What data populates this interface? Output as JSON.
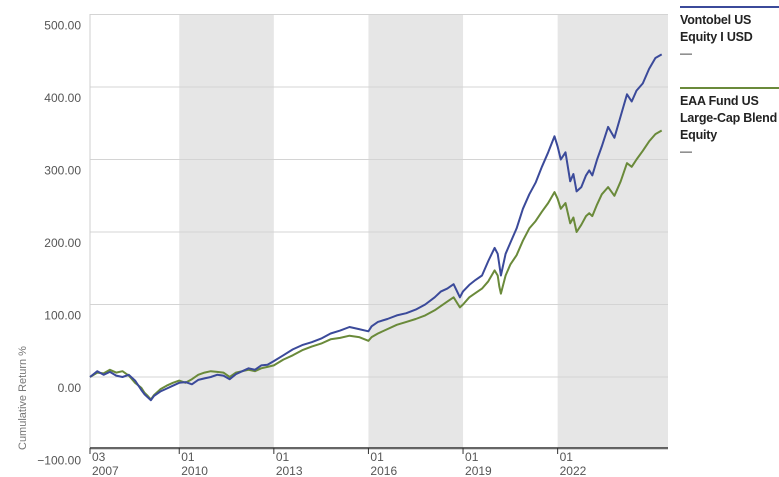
{
  "chart_data": {
    "type": "line",
    "title": "",
    "xlabel": "",
    "ylabel": "Cumulative Return %",
    "ylim": [
      -100,
      500
    ],
    "yticks": [
      "500.00",
      "400.00",
      "300.00",
      "200.00",
      "100.00",
      "0.00",
      "−100.00"
    ],
    "ytick_values": [
      500,
      400,
      300,
      200,
      100,
      0,
      -100
    ],
    "xticks": [
      {
        "month": "03",
        "year": "2007",
        "t": 2007.17
      },
      {
        "month": "01",
        "year": "2010",
        "t": 2010.0
      },
      {
        "month": "01",
        "year": "2013",
        "t": 2013.0
      },
      {
        "month": "01",
        "year": "2016",
        "t": 2016.0
      },
      {
        "month": "01",
        "year": "2019",
        "t": 2019.0
      },
      {
        "month": "01",
        "year": "2022",
        "t": 2022.0
      }
    ],
    "xlim": [
      2007.17,
      2025.5
    ],
    "shaded_periods": [
      [
        2010.0,
        2013.0
      ],
      [
        2016.0,
        2019.0
      ],
      [
        2022.0,
        2025.5
      ]
    ],
    "grid": true,
    "legend_position": "right",
    "series": [
      {
        "name": "Vontobel US Equity I USD",
        "value_label": "—",
        "color": "#3b4a9a",
        "points": [
          [
            2007.17,
            0
          ],
          [
            2007.4,
            8
          ],
          [
            2007.6,
            3
          ],
          [
            2007.8,
            7
          ],
          [
            2008.0,
            2
          ],
          [
            2008.2,
            0
          ],
          [
            2008.4,
            3
          ],
          [
            2008.6,
            -5
          ],
          [
            2008.8,
            -18
          ],
          [
            2008.9,
            -24
          ],
          [
            2009.0,
            -28
          ],
          [
            2009.1,
            -32
          ],
          [
            2009.2,
            -26
          ],
          [
            2009.4,
            -20
          ],
          [
            2009.6,
            -16
          ],
          [
            2009.8,
            -12
          ],
          [
            2010.0,
            -8
          ],
          [
            2010.2,
            -7
          ],
          [
            2010.4,
            -10
          ],
          [
            2010.6,
            -4
          ],
          [
            2010.8,
            -2
          ],
          [
            2011.0,
            0
          ],
          [
            2011.2,
            3
          ],
          [
            2011.4,
            2
          ],
          [
            2011.6,
            -3
          ],
          [
            2011.8,
            4
          ],
          [
            2012.0,
            8
          ],
          [
            2012.2,
            12
          ],
          [
            2012.4,
            10
          ],
          [
            2012.6,
            16
          ],
          [
            2012.8,
            17
          ],
          [
            2013.0,
            22
          ],
          [
            2013.3,
            30
          ],
          [
            2013.6,
            38
          ],
          [
            2013.9,
            44
          ],
          [
            2014.2,
            48
          ],
          [
            2014.5,
            53
          ],
          [
            2014.8,
            60
          ],
          [
            2015.1,
            64
          ],
          [
            2015.4,
            69
          ],
          [
            2015.7,
            66
          ],
          [
            2016.0,
            63
          ],
          [
            2016.1,
            70
          ],
          [
            2016.3,
            76
          ],
          [
            2016.6,
            80
          ],
          [
            2016.9,
            85
          ],
          [
            2017.2,
            88
          ],
          [
            2017.5,
            93
          ],
          [
            2017.8,
            100
          ],
          [
            2018.1,
            110
          ],
          [
            2018.3,
            118
          ],
          [
            2018.5,
            122
          ],
          [
            2018.7,
            128
          ],
          [
            2018.9,
            110
          ],
          [
            2019.0,
            118
          ],
          [
            2019.2,
            127
          ],
          [
            2019.4,
            134
          ],
          [
            2019.6,
            140
          ],
          [
            2019.8,
            160
          ],
          [
            2020.0,
            178
          ],
          [
            2020.1,
            170
          ],
          [
            2020.15,
            155
          ],
          [
            2020.2,
            140
          ],
          [
            2020.35,
            170
          ],
          [
            2020.5,
            185
          ],
          [
            2020.7,
            205
          ],
          [
            2020.9,
            232
          ],
          [
            2021.1,
            252
          ],
          [
            2021.3,
            268
          ],
          [
            2021.5,
            290
          ],
          [
            2021.7,
            310
          ],
          [
            2021.9,
            332
          ],
          [
            2022.0,
            318
          ],
          [
            2022.1,
            300
          ],
          [
            2022.25,
            310
          ],
          [
            2022.4,
            270
          ],
          [
            2022.5,
            280
          ],
          [
            2022.6,
            256
          ],
          [
            2022.75,
            262
          ],
          [
            2022.9,
            278
          ],
          [
            2023.0,
            285
          ],
          [
            2023.1,
            278
          ],
          [
            2023.25,
            300
          ],
          [
            2023.4,
            318
          ],
          [
            2023.6,
            345
          ],
          [
            2023.8,
            330
          ],
          [
            2024.0,
            360
          ],
          [
            2024.2,
            390
          ],
          [
            2024.35,
            380
          ],
          [
            2024.5,
            395
          ],
          [
            2024.7,
            405
          ],
          [
            2024.9,
            425
          ],
          [
            2025.1,
            440
          ],
          [
            2025.3,
            445
          ]
        ]
      },
      {
        "name": "EAA Fund US Large-Cap Blend Equity",
        "value_label": "—",
        "color": "#6a8a3a",
        "points": [
          [
            2007.17,
            0
          ],
          [
            2007.4,
            6
          ],
          [
            2007.6,
            5
          ],
          [
            2007.8,
            10
          ],
          [
            2008.0,
            6
          ],
          [
            2008.2,
            8
          ],
          [
            2008.4,
            2
          ],
          [
            2008.6,
            -8
          ],
          [
            2008.8,
            -15
          ],
          [
            2008.9,
            -22
          ],
          [
            2009.0,
            -26
          ],
          [
            2009.1,
            -31
          ],
          [
            2009.2,
            -25
          ],
          [
            2009.4,
            -17
          ],
          [
            2009.6,
            -12
          ],
          [
            2009.8,
            -8
          ],
          [
            2010.0,
            -5
          ],
          [
            2010.2,
            -8
          ],
          [
            2010.4,
            -3
          ],
          [
            2010.6,
            3
          ],
          [
            2010.8,
            6
          ],
          [
            2011.0,
            8
          ],
          [
            2011.2,
            7
          ],
          [
            2011.4,
            6
          ],
          [
            2011.6,
            0
          ],
          [
            2011.8,
            6
          ],
          [
            2012.0,
            8
          ],
          [
            2012.2,
            10
          ],
          [
            2012.4,
            8
          ],
          [
            2012.6,
            12
          ],
          [
            2012.8,
            14
          ],
          [
            2013.0,
            16
          ],
          [
            2013.3,
            24
          ],
          [
            2013.6,
            30
          ],
          [
            2013.9,
            37
          ],
          [
            2014.2,
            42
          ],
          [
            2014.5,
            46
          ],
          [
            2014.8,
            52
          ],
          [
            2015.1,
            54
          ],
          [
            2015.4,
            57
          ],
          [
            2015.7,
            55
          ],
          [
            2016.0,
            50
          ],
          [
            2016.1,
            55
          ],
          [
            2016.3,
            60
          ],
          [
            2016.6,
            66
          ],
          [
            2016.9,
            72
          ],
          [
            2017.2,
            76
          ],
          [
            2017.5,
            80
          ],
          [
            2017.8,
            85
          ],
          [
            2018.1,
            92
          ],
          [
            2018.3,
            98
          ],
          [
            2018.5,
            104
          ],
          [
            2018.7,
            110
          ],
          [
            2018.9,
            96
          ],
          [
            2019.0,
            100
          ],
          [
            2019.2,
            110
          ],
          [
            2019.4,
            116
          ],
          [
            2019.6,
            122
          ],
          [
            2019.8,
            132
          ],
          [
            2020.0,
            147
          ],
          [
            2020.1,
            140
          ],
          [
            2020.15,
            125
          ],
          [
            2020.2,
            115
          ],
          [
            2020.35,
            140
          ],
          [
            2020.5,
            155
          ],
          [
            2020.7,
            168
          ],
          [
            2020.9,
            188
          ],
          [
            2021.1,
            205
          ],
          [
            2021.3,
            215
          ],
          [
            2021.5,
            228
          ],
          [
            2021.7,
            240
          ],
          [
            2021.9,
            255
          ],
          [
            2022.0,
            246
          ],
          [
            2022.1,
            232
          ],
          [
            2022.25,
            240
          ],
          [
            2022.4,
            212
          ],
          [
            2022.5,
            220
          ],
          [
            2022.6,
            200
          ],
          [
            2022.75,
            210
          ],
          [
            2022.9,
            222
          ],
          [
            2023.0,
            226
          ],
          [
            2023.1,
            222
          ],
          [
            2023.25,
            238
          ],
          [
            2023.4,
            252
          ],
          [
            2023.6,
            262
          ],
          [
            2023.8,
            250
          ],
          [
            2024.0,
            270
          ],
          [
            2024.2,
            295
          ],
          [
            2024.35,
            290
          ],
          [
            2024.5,
            300
          ],
          [
            2024.7,
            312
          ],
          [
            2024.9,
            325
          ],
          [
            2025.1,
            335
          ],
          [
            2025.3,
            340
          ]
        ]
      }
    ]
  }
}
